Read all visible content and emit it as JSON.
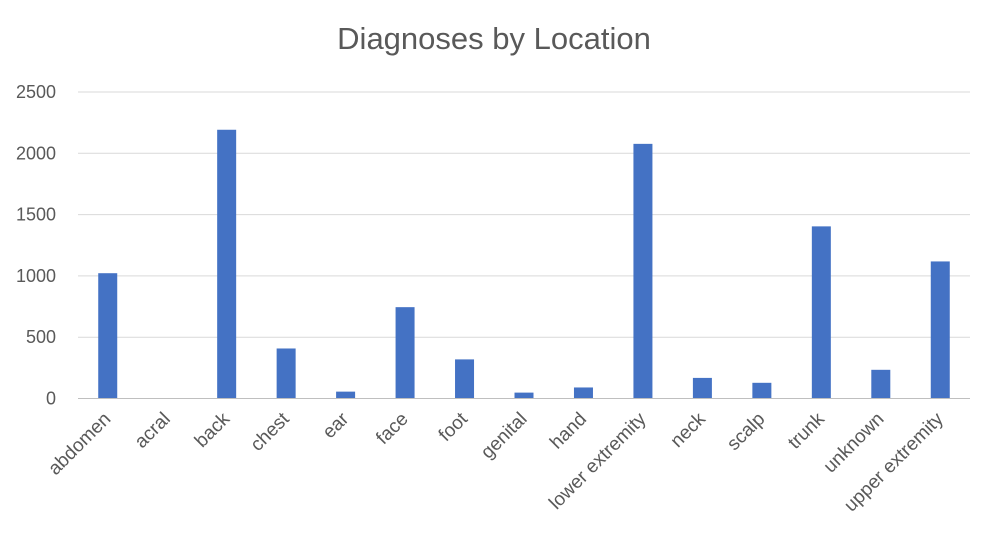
{
  "chart_data": {
    "type": "bar",
    "title": "Diagnoses by Location",
    "xlabel": "",
    "ylabel": "",
    "categories": [
      "abdomen",
      "acral",
      "back",
      "chest",
      "ear",
      "face",
      "foot",
      "genital",
      "hand",
      "lower extremity",
      "neck",
      "scalp",
      "trunk",
      "unknown",
      "upper extremity"
    ],
    "values": [
      1022,
      0,
      2192,
      408,
      56,
      745,
      319,
      48,
      90,
      2077,
      168,
      128,
      1404,
      234,
      1118
    ],
    "ylim": [
      0,
      2500
    ],
    "yticks": [
      "0",
      "500",
      "1000",
      "1500",
      "2000",
      "2500"
    ],
    "grid": true,
    "legend": "none",
    "bar_color": "#4472C4"
  }
}
